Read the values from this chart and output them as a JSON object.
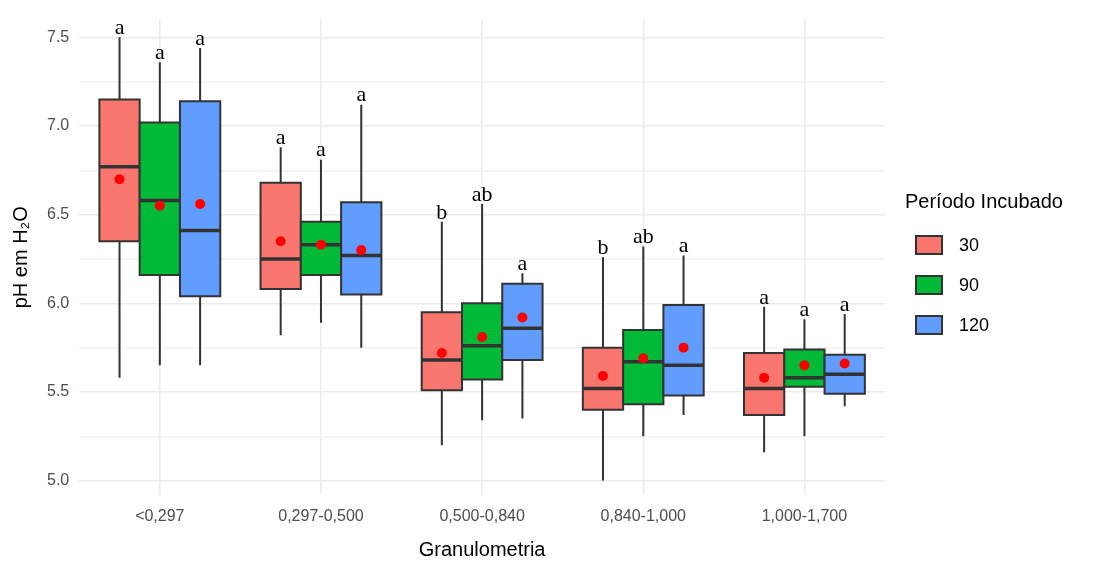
{
  "chart_data": {
    "type": "box",
    "xlabel": "Granulometria",
    "ylabel": "pH em H₂O",
    "legend_title": "Período Incubado",
    "legend": "right",
    "grid": true,
    "categories": [
      "<0,297",
      "0,297-0,500",
      "0,500-0,840",
      "0,840-1,000",
      "1,000-1,700"
    ],
    "ylim": [
      4.92,
      7.6
    ],
    "yticks": [
      {
        "value": 5,
        "label": "5.0"
      },
      {
        "value": 5.25,
        "label": null
      },
      5.5,
      {
        "value": 5.75,
        "label": null
      },
      {
        "value": 6,
        "label": "6.0"
      },
      {
        "value": 6.25,
        "label": null
      },
      6.5,
      {
        "value": 6.75,
        "label": null
      },
      {
        "value": 7,
        "label": "7.0"
      },
      {
        "value": 7.25,
        "label": null
      },
      7.5
    ],
    "series": [
      {
        "name": "30",
        "color": "#f8766d",
        "boxes": [
          {
            "low": 5.58,
            "q1": 6.35,
            "median": 6.77,
            "q3": 7.15,
            "high": 7.5,
            "mean": 6.7
          },
          {
            "low": 5.82,
            "q1": 6.08,
            "median": 6.25,
            "q3": 6.68,
            "high": 6.88,
            "mean": 6.35
          },
          {
            "low": 5.2,
            "q1": 5.51,
            "median": 5.68,
            "q3": 5.95,
            "high": 6.46,
            "mean": 5.72
          },
          {
            "low": 5.0,
            "q1": 5.4,
            "median": 5.52,
            "q3": 5.75,
            "high": 6.26,
            "mean": 5.59
          },
          {
            "low": 5.16,
            "q1": 5.37,
            "median": 5.52,
            "q3": 5.72,
            "high": 5.98,
            "mean": 5.58
          }
        ]
      },
      {
        "name": "90",
        "color": "#00ba38",
        "boxes": [
          {
            "low": 5.65,
            "q1": 6.16,
            "median": 6.58,
            "q3": 7.02,
            "high": 7.36,
            "mean": 6.55
          },
          {
            "low": 5.89,
            "q1": 6.16,
            "median": 6.33,
            "q3": 6.46,
            "high": 6.81,
            "mean": 6.33
          },
          {
            "low": 5.34,
            "q1": 5.57,
            "median": 5.76,
            "q3": 6.0,
            "high": 6.56,
            "mean": 5.81
          },
          {
            "low": 5.25,
            "q1": 5.43,
            "median": 5.67,
            "q3": 5.85,
            "high": 6.32,
            "mean": 5.69
          },
          {
            "low": 5.25,
            "q1": 5.53,
            "median": 5.58,
            "q3": 5.74,
            "high": 5.91,
            "mean": 5.65
          }
        ]
      },
      {
        "name": "120",
        "color": "#619cff",
        "boxes": [
          {
            "low": 5.65,
            "q1": 6.04,
            "median": 6.41,
            "q3": 7.14,
            "high": 7.44,
            "mean": 6.56
          },
          {
            "low": 5.75,
            "q1": 6.05,
            "median": 6.27,
            "q3": 6.57,
            "high": 7.12,
            "mean": 6.3
          },
          {
            "low": 5.35,
            "q1": 5.68,
            "median": 5.86,
            "q3": 6.11,
            "high": 6.17,
            "mean": 5.92
          },
          {
            "low": 5.37,
            "q1": 5.48,
            "median": 5.65,
            "q3": 5.99,
            "high": 6.27,
            "mean": 5.75
          },
          {
            "low": 5.42,
            "q1": 5.49,
            "median": 5.6,
            "q3": 5.71,
            "high": 5.94,
            "mean": 5.66
          }
        ]
      }
    ],
    "annotations": [
      "a",
      "a",
      "a",
      "a",
      "a",
      "a",
      "b",
      "ab",
      "a",
      "b",
      "ab",
      "a",
      "a",
      "a",
      "a"
    ]
  }
}
